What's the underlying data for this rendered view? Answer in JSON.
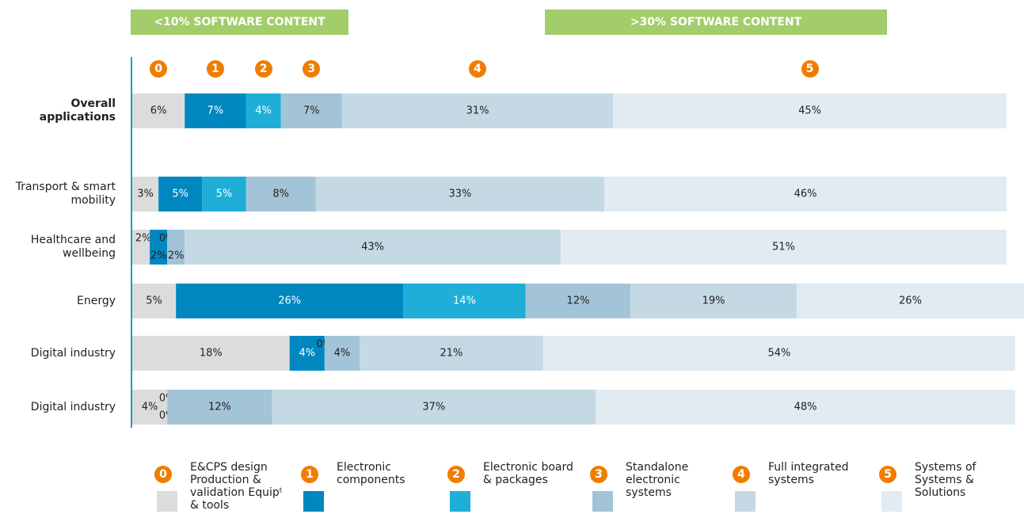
{
  "chart_data": {
    "type": "stacked-barh",
    "headers": [
      "<10% SOFTWARE CONTENT",
      ">30% SOFTWARE CONTENT"
    ],
    "categories": [
      "Overall applications",
      "Transport & smart mobility",
      "Healthcare and wellbeing",
      "Energy",
      "Digital industry",
      "Digital industry"
    ],
    "series": [
      {
        "name": "E&CPS design Production & validation Equipᵗ & tools",
        "badge": "0",
        "color": "#dcdcdc",
        "values": [
          6,
          3,
          2,
          5,
          18,
          4
        ]
      },
      {
        "name": "Electronic components",
        "badge": "1",
        "color": "#0087c0",
        "values": [
          7,
          5,
          2,
          26,
          4,
          0
        ]
      },
      {
        "name": "Electronic board & packages",
        "badge": "2",
        "color": "#1eaed8",
        "values": [
          4,
          5,
          0,
          14,
          0,
          0
        ]
      },
      {
        "name": "Standalone electronic systems",
        "badge": "3",
        "color": "#a3c4d6",
        "values": [
          7,
          8,
          2,
          12,
          4,
          12
        ]
      },
      {
        "name": "Full integrated systems",
        "badge": "4",
        "color": "#c5d9e5",
        "values": [
          31,
          33,
          43,
          19,
          21,
          37
        ]
      },
      {
        "name": "Systems of Systems & Solutions",
        "badge": "5",
        "color": "#e1ebf1",
        "values": [
          45,
          46,
          51,
          26,
          54,
          48
        ]
      }
    ],
    "value_labels": [
      [
        "6%",
        "3%",
        "2%",
        "5%",
        "18%",
        "4%"
      ],
      [
        "7%",
        "5%",
        "2%",
        "26%",
        "4%",
        "0%"
      ],
      [
        "4%",
        "5%",
        "0%",
        "14%",
        "0%",
        "0%"
      ],
      [
        "7%",
        "8%",
        "2%",
        "12%",
        "4%",
        "12%"
      ],
      [
        "31%",
        "33%",
        "43%",
        "19%",
        "21%",
        "37%"
      ],
      [
        "45%",
        "46%",
        "51%",
        "26%",
        "54%",
        "48%"
      ]
    ]
  }
}
